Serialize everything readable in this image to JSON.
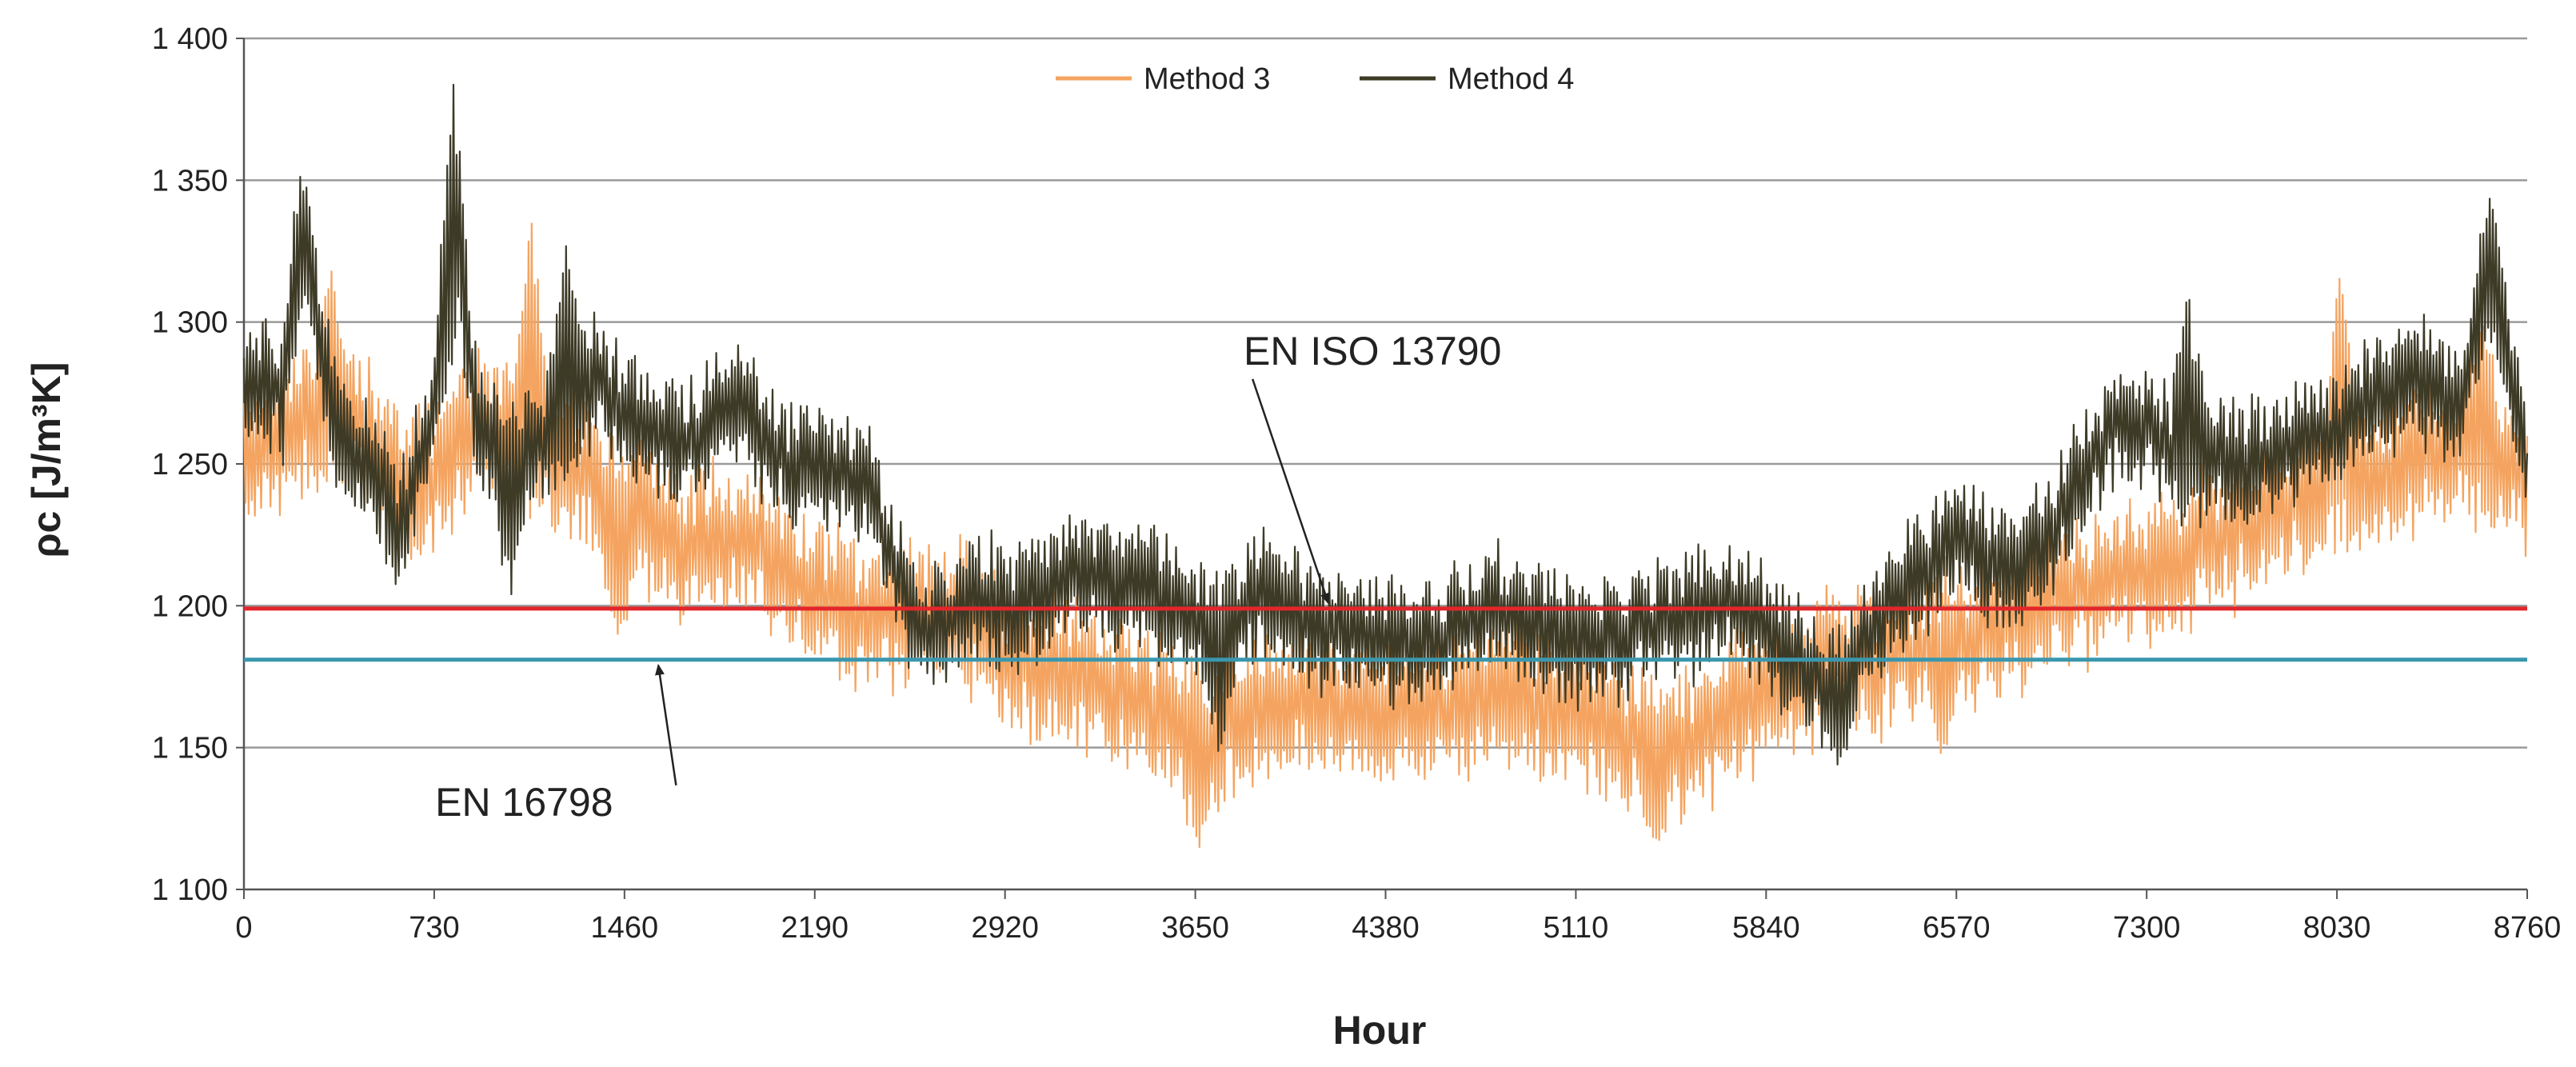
{
  "chart_data": {
    "type": "line",
    "title": "",
    "xlabel": "Hour",
    "ylabel": "ρc [J/m³K]",
    "xlim": [
      0,
      8760
    ],
    "ylim": [
      1100,
      1400
    ],
    "x_ticks": [
      0,
      730,
      1460,
      2190,
      2920,
      3650,
      4380,
      5110,
      5840,
      6570,
      7300,
      8030,
      8760
    ],
    "y_ticks": [
      1100,
      1150,
      1200,
      1250,
      1300,
      1350,
      1400
    ],
    "y_tick_labels": [
      "1 100",
      "1 150",
      "1 200",
      "1 250",
      "1 300",
      "1 350",
      "1 400"
    ],
    "grid": "horizontal",
    "legend_position": "top-center",
    "series": [
      {
        "name": "Method 3",
        "color": "#F4A460",
        "baseline": [
          [
            0,
            1255
          ],
          [
            200,
            1262
          ],
          [
            400,
            1270
          ],
          [
            600,
            1240
          ],
          [
            730,
            1245
          ],
          [
            900,
            1265
          ],
          [
            1100,
            1258
          ],
          [
            1300,
            1250
          ],
          [
            1460,
            1232
          ],
          [
            1700,
            1222
          ],
          [
            1900,
            1225
          ],
          [
            2190,
            1205
          ],
          [
            2400,
            1195
          ],
          [
            2600,
            1200
          ],
          [
            2800,
            1195
          ],
          [
            2920,
            1182
          ],
          [
            3200,
            1175
          ],
          [
            3500,
            1165
          ],
          [
            3700,
            1152
          ],
          [
            3900,
            1162
          ],
          [
            4100,
            1168
          ],
          [
            4380,
            1162
          ],
          [
            4600,
            1165
          ],
          [
            4800,
            1170
          ],
          [
            5110,
            1162
          ],
          [
            5300,
            1155
          ],
          [
            5500,
            1148
          ],
          [
            5700,
            1162
          ],
          [
            5840,
            1170
          ],
          [
            6100,
            1180
          ],
          [
            6300,
            1182
          ],
          [
            6570,
            1188
          ],
          [
            6800,
            1195
          ],
          [
            7000,
            1205
          ],
          [
            7300,
            1212
          ],
          [
            7600,
            1225
          ],
          [
            8030,
            1242
          ],
          [
            8300,
            1248
          ],
          [
            8500,
            1258
          ],
          [
            8760,
            1245
          ]
        ],
        "amplitude": 26,
        "peaks": [
          {
            "x": 1100,
            "y": 1345
          },
          {
            "x": 330,
            "y": 1325
          },
          {
            "x": 1440,
            "y": 1180
          },
          {
            "x": 3660,
            "y": 1112
          },
          {
            "x": 5410,
            "y": 1115
          },
          {
            "x": 8040,
            "y": 1322
          },
          {
            "x": 8590,
            "y": 1310
          },
          {
            "x": 6520,
            "y": 1145
          }
        ]
      },
      {
        "name": "Method 4",
        "color": "#3D3A26",
        "baseline": [
          [
            0,
            1280
          ],
          [
            150,
            1275
          ],
          [
            230,
            1325
          ],
          [
            350,
            1262
          ],
          [
            500,
            1248
          ],
          [
            600,
            1228
          ],
          [
            730,
            1268
          ],
          [
            820,
            1318
          ],
          [
            900,
            1262
          ],
          [
            1000,
            1250
          ],
          [
            1200,
            1262
          ],
          [
            1350,
            1280
          ],
          [
            1460,
            1265
          ],
          [
            1700,
            1258
          ],
          [
            1900,
            1272
          ],
          [
            2100,
            1248
          ],
          [
            2190,
            1252
          ],
          [
            2400,
            1240
          ],
          [
            2600,
            1190
          ],
          [
            2800,
            1205
          ],
          [
            2920,
            1198
          ],
          [
            3200,
            1212
          ],
          [
            3500,
            1205
          ],
          [
            3700,
            1190
          ],
          [
            3900,
            1205
          ],
          [
            4100,
            1195
          ],
          [
            4380,
            1185
          ],
          [
            4600,
            1190
          ],
          [
            4800,
            1200
          ],
          [
            5110,
            1185
          ],
          [
            5300,
            1190
          ],
          [
            5500,
            1195
          ],
          [
            5700,
            1200
          ],
          [
            5840,
            1192
          ],
          [
            6100,
            1168
          ],
          [
            6300,
            1200
          ],
          [
            6570,
            1222
          ],
          [
            6800,
            1212
          ],
          [
            6950,
            1228
          ],
          [
            7200,
            1268
          ],
          [
            7400,
            1255
          ],
          [
            7700,
            1250
          ],
          [
            8030,
            1262
          ],
          [
            8300,
            1282
          ],
          [
            8500,
            1270
          ],
          [
            8620,
            1318
          ],
          [
            8760,
            1248
          ]
        ],
        "amplitude": 22,
        "peaks": [
          {
            "x": 800,
            "y": 1388
          },
          {
            "x": 220,
            "y": 1358
          },
          {
            "x": 1240,
            "y": 1335
          },
          {
            "x": 8620,
            "y": 1345
          },
          {
            "x": 1020,
            "y": 1197
          },
          {
            "x": 6120,
            "y": 1142
          },
          {
            "x": 7460,
            "y": 1315
          },
          {
            "x": 3750,
            "y": 1140
          }
        ]
      },
      {
        "name": "EN ISO 13790",
        "color": "#E3262B",
        "constant": 1199
      },
      {
        "name": "EN 16798",
        "color": "#3A97AE",
        "constant": 1181
      }
    ],
    "annotations": [
      {
        "text": "EN ISO 13790",
        "target_series": "EN ISO 13790",
        "text_x": 4330,
        "text_y": 1285,
        "arrow_to_x": 4160,
        "arrow_to_y": 1201
      },
      {
        "text": "EN 16798",
        "target_series": "EN 16798",
        "text_x": 1075,
        "text_y": 1126,
        "arrow_to_x": 1590,
        "arrow_to_y": 1179
      }
    ]
  }
}
